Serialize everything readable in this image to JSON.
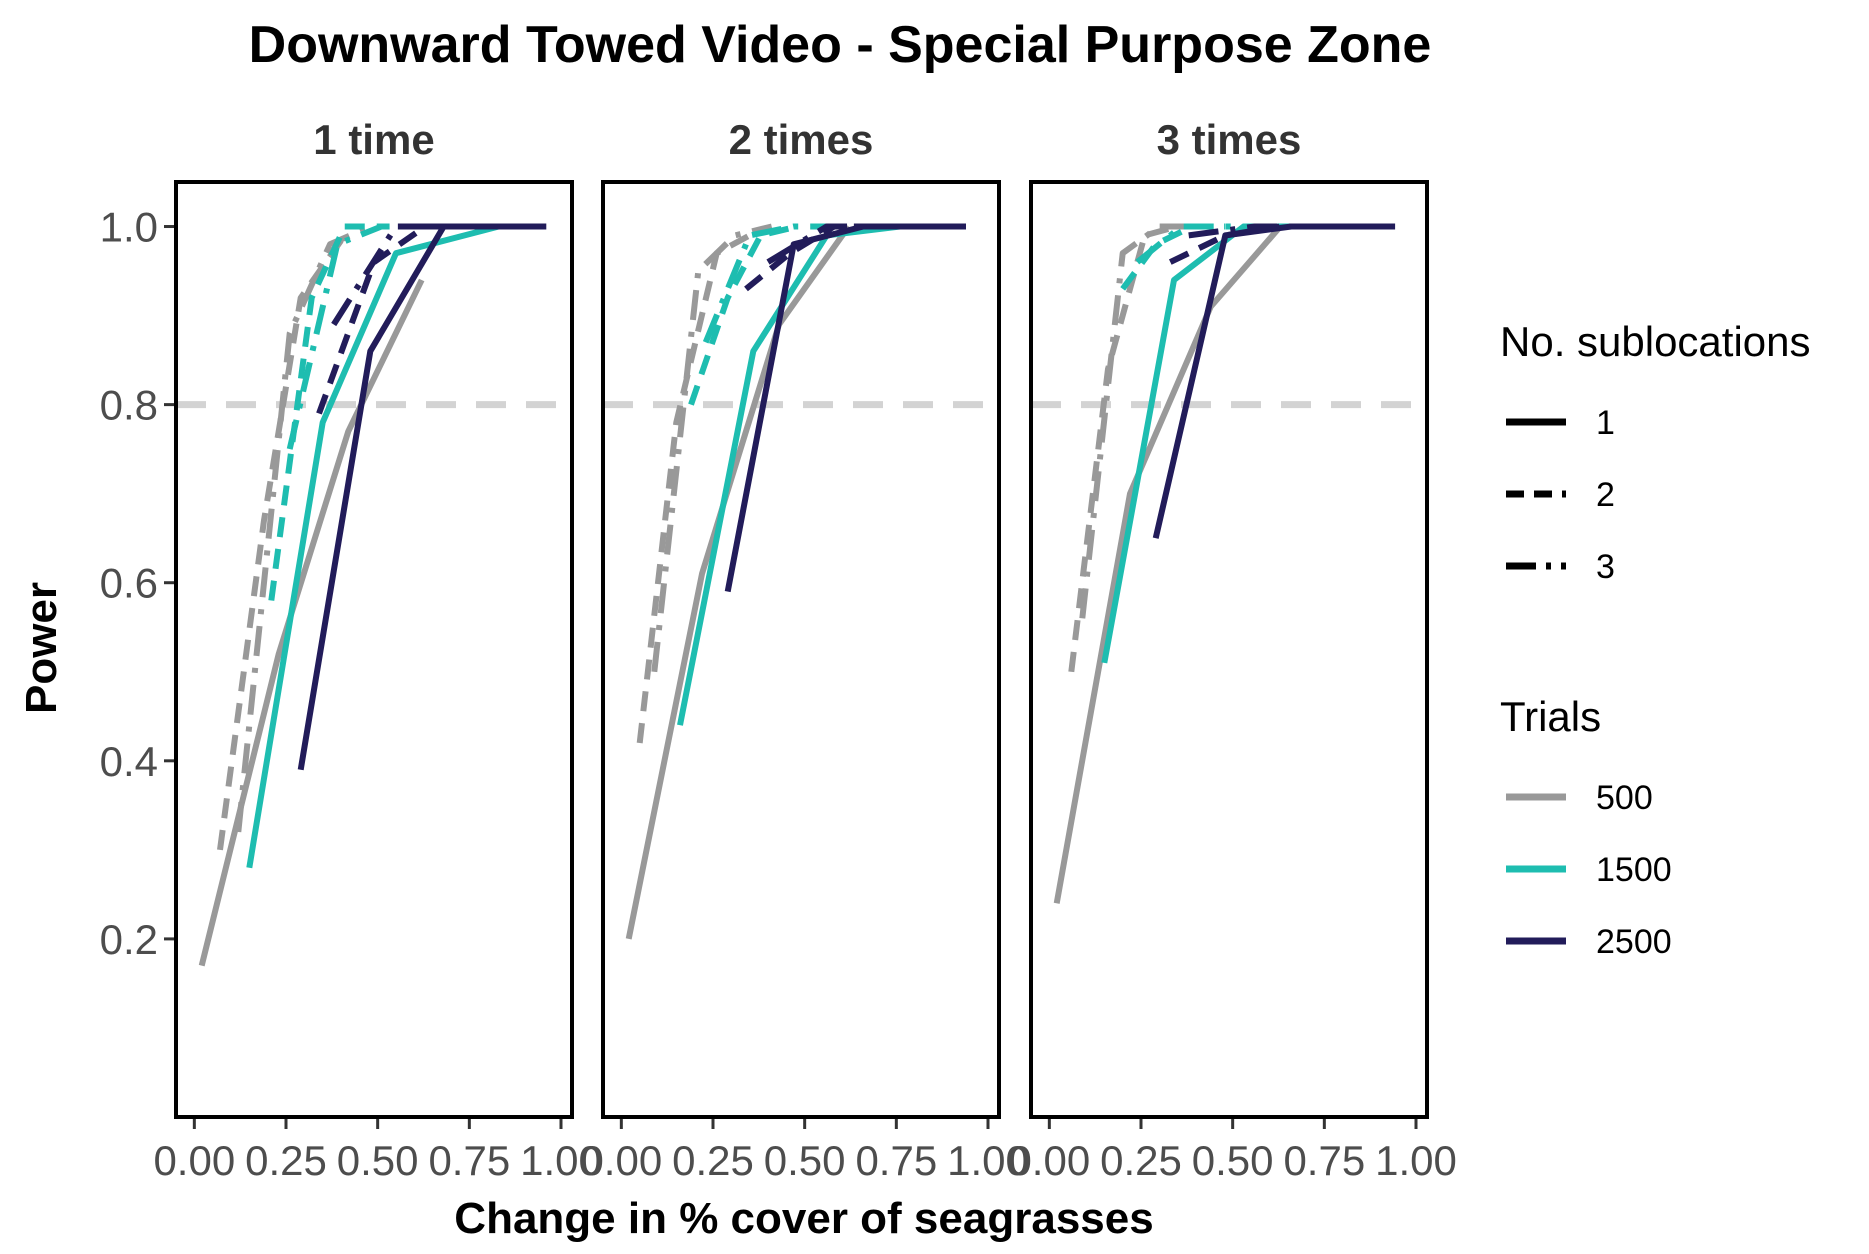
{
  "chart_data": {
    "type": "line",
    "title": "Downward Towed Video - Special Purpose Zone",
    "xlabel": "Change in % cover of seagrasses",
    "ylabel": "Power",
    "xlim": [
      -0.05,
      1.03
    ],
    "ylim": [
      0.0,
      1.05
    ],
    "x_ticks": [
      0.0,
      0.25,
      0.5,
      0.75,
      1.0
    ],
    "x_tick_labels": [
      "0.00",
      "0.25",
      "0.50",
      "0.75",
      "1.00"
    ],
    "y_ticks": [
      0.2,
      0.4,
      0.6,
      0.8,
      1.0
    ],
    "y_tick_labels": [
      "0.2",
      "0.4",
      "0.6",
      "0.8",
      "1.0"
    ],
    "reference_line": {
      "y": 0.8,
      "style": "dashed",
      "color": "#d3d3d3"
    },
    "grid": false,
    "legend_placement": "right",
    "legends": [
      {
        "title": "No. sublocations",
        "key": "linetype",
        "items": [
          {
            "label": "1",
            "dash": "solid"
          },
          {
            "label": "2",
            "dash": "dashed"
          },
          {
            "label": "3",
            "dash": "longdash-dot"
          }
        ]
      },
      {
        "title": "Trials",
        "key": "color",
        "items": [
          {
            "label": "500",
            "color": "#999999"
          },
          {
            "label": "1500",
            "color": "#1ebdb0"
          },
          {
            "label": "2500",
            "color": "#221c5a"
          }
        ]
      }
    ],
    "facets": [
      {
        "label": "1 time",
        "series": [
          {
            "trials": "500",
            "sublocations": "1",
            "x": [
              0.02,
              0.23,
              0.42,
              0.62
            ],
            "y": [
              0.17,
              0.52,
              0.77,
              0.94
            ]
          },
          {
            "trials": "500",
            "sublocations": "2",
            "x": [
              0.07,
              0.19,
              0.29,
              0.41
            ],
            "y": [
              0.3,
              0.67,
              0.92,
              0.99
            ]
          },
          {
            "trials": "500",
            "sublocations": "3",
            "x": [
              0.12,
              0.26,
              0.37,
              0.48
            ],
            "y": [
              0.32,
              0.88,
              0.98,
              1.0
            ]
          },
          {
            "trials": "1500",
            "sublocations": "1",
            "x": [
              0.15,
              0.35,
              0.55,
              0.83
            ],
            "y": [
              0.28,
              0.78,
              0.97,
              1.0
            ]
          },
          {
            "trials": "1500",
            "sublocations": "2",
            "x": [
              0.21,
              0.32,
              0.41,
              0.52
            ],
            "y": [
              0.58,
              0.92,
              1.0,
              1.0
            ]
          },
          {
            "trials": "1500",
            "sublocations": "3",
            "x": [
              0.26,
              0.39,
              0.51,
              0.63
            ],
            "y": [
              0.75,
              0.98,
              1.0,
              1.0
            ]
          },
          {
            "trials": "2500",
            "sublocations": "1",
            "x": [
              0.29,
              0.48,
              0.68,
              0.96
            ],
            "y": [
              0.39,
              0.86,
              1.0,
              1.0
            ]
          },
          {
            "trials": "2500",
            "sublocations": "2",
            "x": [
              0.34,
              0.49,
              0.63,
              0.77
            ],
            "y": [
              0.79,
              0.96,
              1.0,
              1.0
            ]
          },
          {
            "trials": "2500",
            "sublocations": "3",
            "x": [
              0.38,
              0.55,
              0.7,
              0.86
            ],
            "y": [
              0.89,
              1.0,
              1.0,
              1.0
            ]
          }
        ]
      },
      {
        "label": "2 times",
        "series": [
          {
            "trials": "500",
            "sublocations": "1",
            "x": [
              0.02,
              0.22,
              0.43,
              0.62
            ],
            "y": [
              0.2,
              0.61,
              0.89,
              1.0
            ]
          },
          {
            "trials": "500",
            "sublocations": "2",
            "x": [
              0.05,
              0.15,
              0.26,
              0.35
            ],
            "y": [
              0.42,
              0.78,
              0.97,
              0.99
            ]
          },
          {
            "trials": "500",
            "sublocations": "3",
            "x": [
              0.09,
              0.21,
              0.31,
              0.41
            ],
            "y": [
              0.5,
              0.95,
              0.99,
              1.0
            ]
          },
          {
            "trials": "1500",
            "sublocations": "1",
            "x": [
              0.16,
              0.36,
              0.56,
              0.76
            ],
            "y": [
              0.44,
              0.86,
              0.99,
              1.0
            ]
          },
          {
            "trials": "1500",
            "sublocations": "2",
            "x": [
              0.19,
              0.29,
              0.38,
              0.48
            ],
            "y": [
              0.8,
              0.92,
              0.99,
              1.0
            ]
          },
          {
            "trials": "1500",
            "sublocations": "3",
            "x": [
              0.23,
              0.35,
              0.47,
              0.6
            ],
            "y": [
              0.87,
              0.99,
              1.0,
              1.0
            ]
          },
          {
            "trials": "2500",
            "sublocations": "1",
            "x": [
              0.29,
              0.47,
              0.66,
              0.94
            ],
            "y": [
              0.59,
              0.98,
              1.0,
              1.0
            ]
          },
          {
            "trials": "2500",
            "sublocations": "2",
            "x": [
              0.34,
              0.46,
              0.58,
              0.73
            ],
            "y": [
              0.93,
              0.97,
              1.0,
              1.0
            ]
          },
          {
            "trials": "2500",
            "sublocations": "3",
            "x": [
              0.4,
              0.56,
              0.72,
              0.97
            ],
            "y": [
              0.96,
              1.0,
              1.0,
              1.0
            ]
          }
        ]
      },
      {
        "label": "3 times",
        "series": [
          {
            "trials": "500",
            "sublocations": "1",
            "x": [
              0.02,
              0.22,
              0.44,
              0.63
            ],
            "y": [
              0.24,
              0.7,
              0.91,
              1.0
            ]
          },
          {
            "trials": "500",
            "sublocations": "2",
            "x": [
              0.06,
              0.16,
              0.26,
              0.35
            ],
            "y": [
              0.5,
              0.84,
              0.99,
              1.0
            ]
          },
          {
            "trials": "500",
            "sublocations": "3",
            "x": [
              0.09,
              0.2,
              0.3,
              0.4
            ],
            "y": [
              0.56,
              0.97,
              1.0,
              1.0
            ]
          },
          {
            "trials": "1500",
            "sublocations": "1",
            "x": [
              0.15,
              0.34,
              0.53,
              0.73
            ],
            "y": [
              0.51,
              0.94,
              1.0,
              1.0
            ]
          },
          {
            "trials": "1500",
            "sublocations": "2",
            "x": [
              0.2,
              0.29,
              0.39,
              0.48
            ],
            "y": [
              0.93,
              0.98,
              1.0,
              1.0
            ]
          },
          {
            "trials": "1500",
            "sublocations": "3",
            "x": [
              0.24,
              0.36,
              0.49,
              0.62
            ],
            "y": [
              0.96,
              1.0,
              1.0,
              1.0
            ]
          },
          {
            "trials": "2500",
            "sublocations": "1",
            "x": [
              0.29,
              0.48,
              0.66,
              0.88
            ],
            "y": [
              0.65,
              0.99,
              1.0,
              1.0
            ]
          },
          {
            "trials": "2500",
            "sublocations": "2",
            "x": [
              0.33,
              0.48,
              0.63,
              0.78
            ],
            "y": [
              0.96,
              0.99,
              1.0,
              1.0
            ]
          },
          {
            "trials": "2500",
            "sublocations": "3",
            "x": [
              0.38,
              0.56,
              0.74,
              0.96
            ],
            "y": [
              0.99,
              1.0,
              1.0,
              1.0
            ]
          }
        ]
      }
    ]
  }
}
